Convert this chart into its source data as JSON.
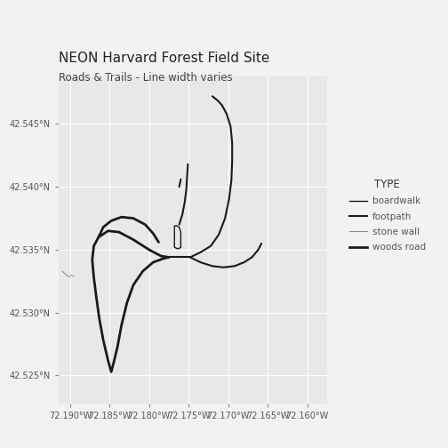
{
  "title": "NEON Harvard Forest Field Site",
  "subtitle": "Roads & Trails - Line width varies",
  "xlim": [
    -72.1915,
    -72.1575
  ],
  "ylim": [
    42.5228,
    42.5488
  ],
  "xticks": [
    -72.19,
    -72.185,
    -72.18,
    -72.175,
    -72.17,
    -72.165,
    -72.16
  ],
  "yticks": [
    42.525,
    42.53,
    42.535,
    42.54,
    42.545
  ],
  "bg_color": "#e8e8e8",
  "outer_bg": "#f2f2f2",
  "grid_color": "#ffffff",
  "legend_title": "TYPE",
  "legend_items": [
    "boardwalk",
    "footpath",
    "stone wall",
    "woods road"
  ],
  "legend_lw": [
    1.0,
    1.5,
    0.7,
    2.0
  ],
  "legend_colors": [
    "#1a1a1a",
    "#1a1a1a",
    "#888888",
    "#1a1a1a"
  ],
  "woods_road": {
    "lw": 2.0,
    "color": "#1a1a1a",
    "segments": [
      [
        [
          -72.1848,
          42.5253
        ],
        [
          -72.1845,
          42.526
        ],
        [
          -72.184,
          42.5273
        ],
        [
          -72.1835,
          42.529
        ],
        [
          -72.1828,
          42.5308
        ],
        [
          -72.182,
          42.5322
        ],
        [
          -72.1808,
          42.5333
        ],
        [
          -72.1795,
          42.534
        ],
        [
          -72.1782,
          42.5343
        ],
        [
          -72.1775,
          42.5344
        ]
      ],
      [
        [
          -72.1848,
          42.5253
        ],
        [
          -72.1852,
          42.5262
        ],
        [
          -72.1858,
          42.5278
        ],
        [
          -72.1863,
          42.5295
        ],
        [
          -72.1867,
          42.5313
        ],
        [
          -72.187,
          42.5328
        ],
        [
          -72.1872,
          42.5342
        ],
        [
          -72.187,
          42.5353
        ],
        [
          -72.1864,
          42.536
        ],
        [
          -72.1852,
          42.5365
        ],
        [
          -72.1838,
          42.5364
        ],
        [
          -72.182,
          42.5358
        ],
        [
          -72.18,
          42.535
        ],
        [
          -72.1785,
          42.5345
        ],
        [
          -72.1775,
          42.5344
        ]
      ],
      [
        [
          -72.1864,
          42.536
        ],
        [
          -72.1858,
          42.5368
        ],
        [
          -72.1848,
          42.5373
        ],
        [
          -72.1835,
          42.5376
        ],
        [
          -72.182,
          42.5375
        ],
        [
          -72.1805,
          42.537
        ],
        [
          -72.1795,
          42.5363
        ],
        [
          -72.1788,
          42.5356
        ]
      ]
    ]
  },
  "footpath": {
    "lw": 1.5,
    "color": "#1a1a1a",
    "segments": [
      [
        [
          -72.1775,
          42.5344
        ],
        [
          -72.1765,
          42.5344
        ],
        [
          -72.1755,
          42.5344
        ],
        [
          -72.1748,
          42.5344
        ]
      ],
      [
        [
          -72.1748,
          42.5344
        ],
        [
          -72.1735,
          42.5348
        ],
        [
          -72.1722,
          42.5353
        ],
        [
          -72.1712,
          42.5362
        ],
        [
          -72.1704,
          42.5375
        ],
        [
          -72.1699,
          42.539
        ],
        [
          -72.1696,
          42.5405
        ],
        [
          -72.1695,
          42.542
        ],
        [
          -72.1695,
          42.5435
        ],
        [
          -72.1697,
          42.5448
        ],
        [
          -72.1702,
          42.5458
        ],
        [
          -72.1708,
          42.5465
        ],
        [
          -72.1714,
          42.5469
        ],
        [
          -72.172,
          42.5472
        ]
      ],
      [
        [
          -72.1748,
          42.5344
        ],
        [
          -72.1735,
          42.534
        ],
        [
          -72.172,
          42.5337
        ],
        [
          -72.1706,
          42.5336
        ],
        [
          -72.1692,
          42.5337
        ],
        [
          -72.168,
          42.534
        ],
        [
          -72.167,
          42.5344
        ],
        [
          -72.1662,
          42.535
        ],
        [
          -72.1658,
          42.5355
        ]
      ],
      [
        [
          -72.1762,
          42.537
        ],
        [
          -72.1758,
          42.5378
        ],
        [
          -72.1755,
          42.5388
        ],
        [
          -72.1753,
          42.5398
        ],
        [
          -72.1752,
          42.5408
        ],
        [
          -72.1751,
          42.5418
        ]
      ],
      [
        [
          -72.1762,
          42.54
        ],
        [
          -72.176,
          42.5406
        ]
      ]
    ]
  },
  "boardwalk": {
    "lw": 1.0,
    "color": "#1a1a1a",
    "segments": [
      [
        [
          -72.176,
          42.5352
        ],
        [
          -72.176,
          42.5358
        ],
        [
          -72.176,
          42.5364
        ],
        [
          -72.1762,
          42.5368
        ],
        [
          -72.1765,
          42.5369
        ],
        [
          -72.1768,
          42.5369
        ],
        [
          -72.1768,
          42.5364
        ],
        [
          -72.1768,
          42.5358
        ],
        [
          -72.1768,
          42.5352
        ],
        [
          -72.1765,
          42.5351
        ],
        [
          -72.1762,
          42.5351
        ],
        [
          -72.176,
          42.5352
        ]
      ]
    ]
  },
  "stone_wall": {
    "lw": 0.7,
    "color": "#888888",
    "segments": [
      [
        [
          -72.191,
          42.5333
        ],
        [
          -72.1905,
          42.533
        ],
        [
          -72.19,
          42.5328
        ]
      ],
      [
        [
          -72.19,
          42.533
        ],
        [
          -72.1895,
          42.5329
        ]
      ]
    ]
  }
}
